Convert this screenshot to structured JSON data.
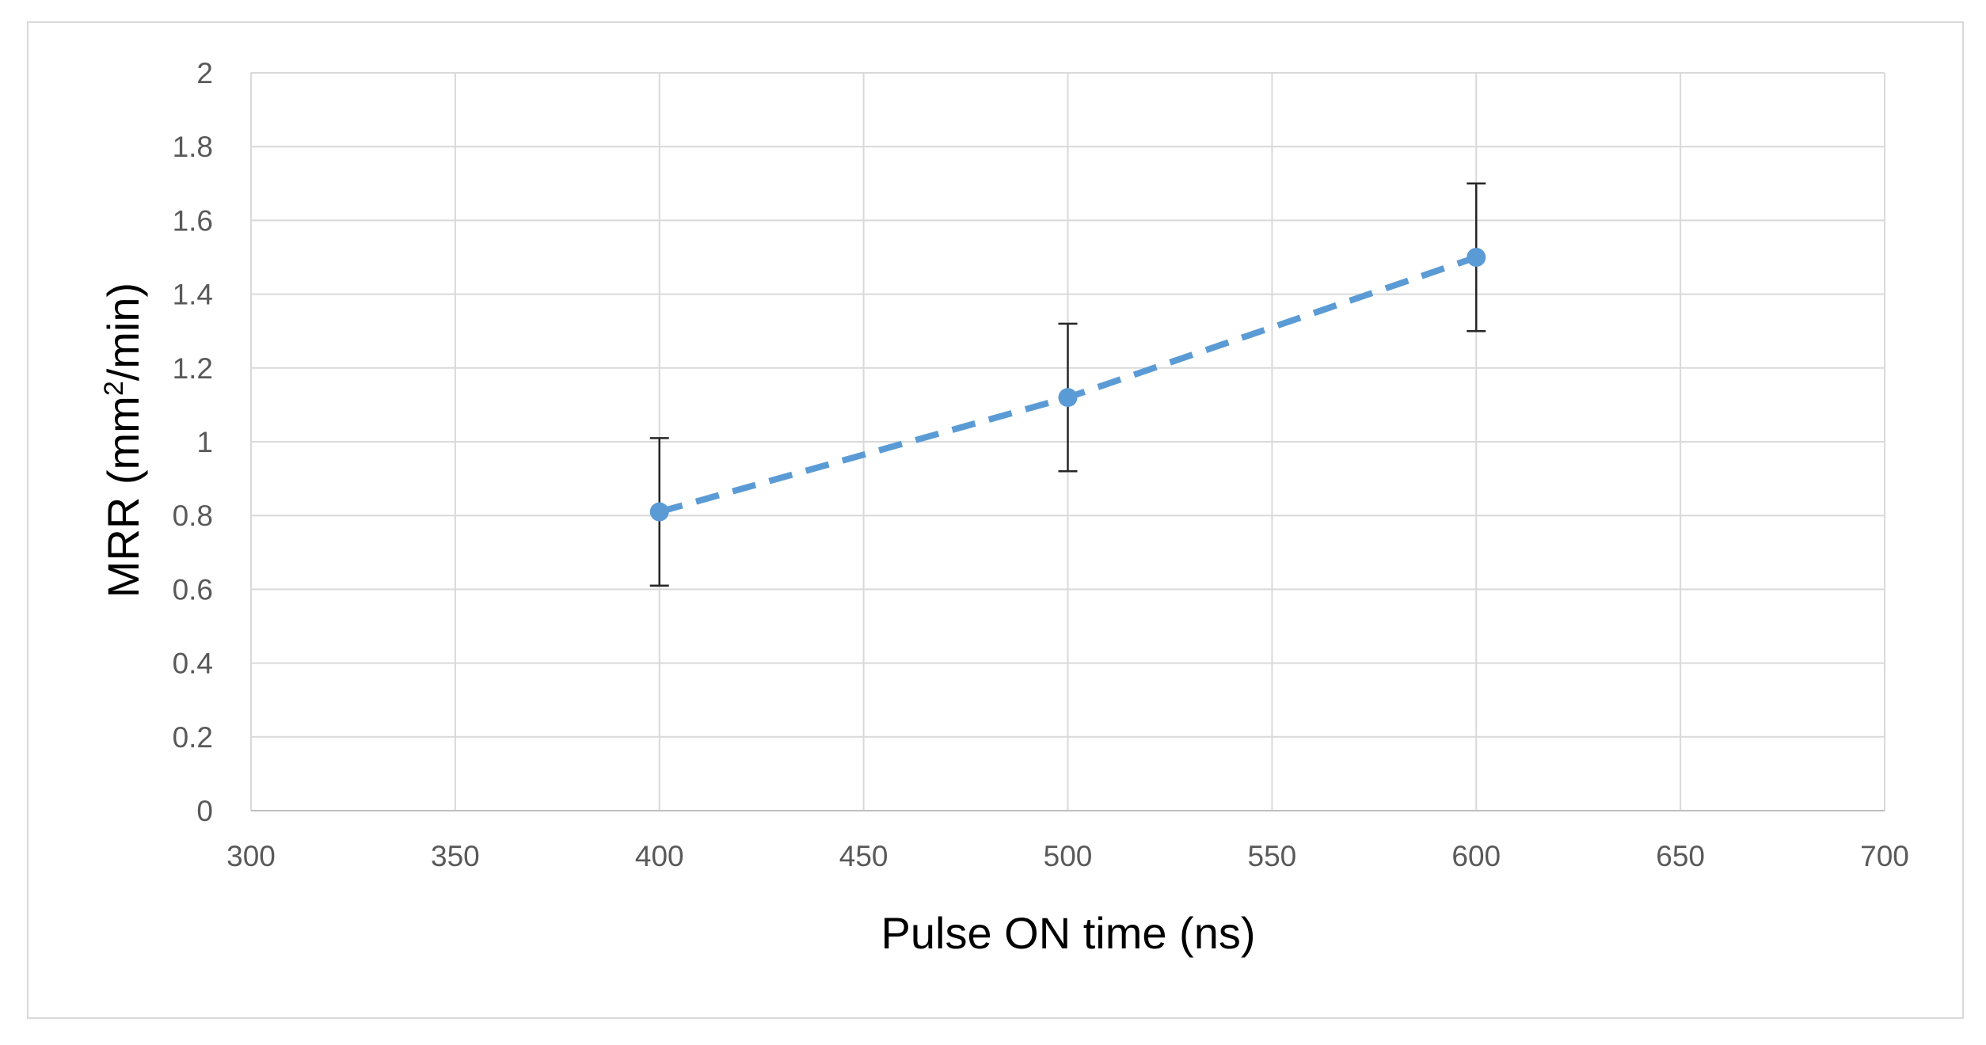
{
  "chart_data": {
    "type": "scatter",
    "title": "",
    "xlabel": "Pulse ON time (ns)",
    "ylabel_main": "MRR (mm",
    "ylabel_sup": "2",
    "ylabel_tail": "/min)",
    "xlim": [
      300,
      700
    ],
    "ylim": [
      0,
      2
    ],
    "xticks": [
      "300",
      "350",
      "400",
      "450",
      "500",
      "550",
      "600",
      "650",
      "700"
    ],
    "yticks": [
      "0",
      "0.2",
      "0.4",
      "0.6",
      "0.8",
      "1",
      "1.2",
      "1.4",
      "1.6",
      "1.8",
      "2"
    ],
    "grid": true,
    "legend": "none",
    "series": [
      {
        "x": [
          400,
          500,
          600
        ],
        "y": [
          0.81,
          1.12,
          1.5
        ],
        "error_low": [
          0.61,
          0.92,
          1.3
        ],
        "error_high": [
          1.01,
          1.32,
          1.7
        ],
        "color": "#5b9bd5",
        "line_style": "dashed"
      }
    ]
  }
}
